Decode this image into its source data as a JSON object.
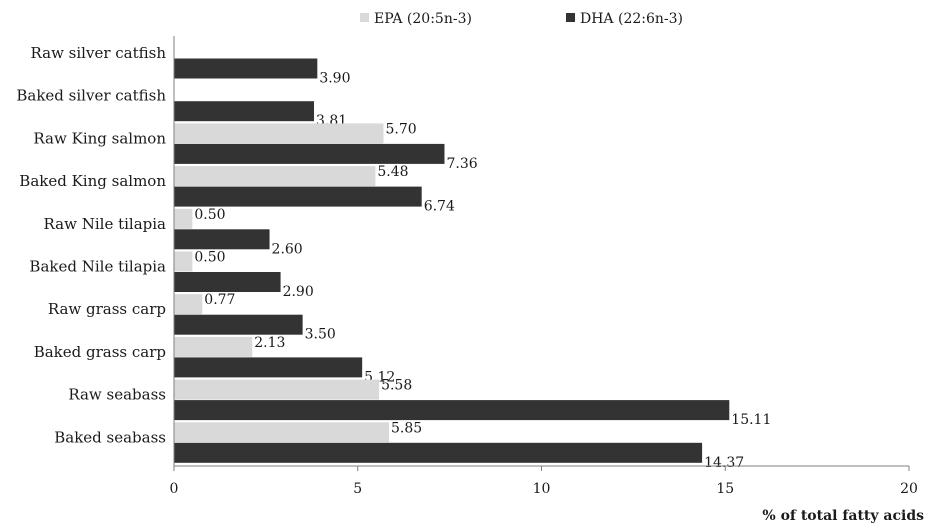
{
  "chart_data": {
    "type": "bar",
    "orientation": "horizontal",
    "categories": [
      "Raw silver catfish",
      "Baked silver catfish",
      "Raw King salmon",
      "Baked King salmon",
      "Raw Nile tilapia",
      "Baked Nile tilapia",
      "Raw grass carp",
      "Baked grass carp",
      "Raw seabass",
      "Baked seabass"
    ],
    "series": [
      {
        "name": "EPA (20:5n-3)",
        "color": "#d9d9d9",
        "values": [
          null,
          null,
          5.7,
          5.48,
          0.5,
          0.5,
          0.77,
          2.13,
          5.58,
          5.85
        ],
        "labels": [
          "",
          "",
          "5.70",
          "5.48",
          "0.50",
          "0.50",
          "0.77",
          "2.13",
          "5.58",
          "5.85"
        ]
      },
      {
        "name": "DHA (22:6n-3)",
        "color": "#333333",
        "values": [
          3.9,
          3.81,
          7.36,
          6.74,
          2.6,
          2.9,
          3.5,
          5.12,
          15.11,
          14.37
        ],
        "labels": [
          "3.90",
          "3.81",
          "7.36",
          "6.74",
          "2.60",
          "2.90",
          "3.50",
          "5.12",
          "15.11",
          "14.37"
        ]
      }
    ],
    "xlabel": "% of total fatty acids",
    "xlim": [
      0,
      20
    ],
    "xticks": [
      0,
      5,
      10,
      15,
      20
    ],
    "xtick_labels": [
      "0",
      "5",
      "10",
      "15",
      "20"
    ],
    "legend_position": "top",
    "grid": false
  }
}
